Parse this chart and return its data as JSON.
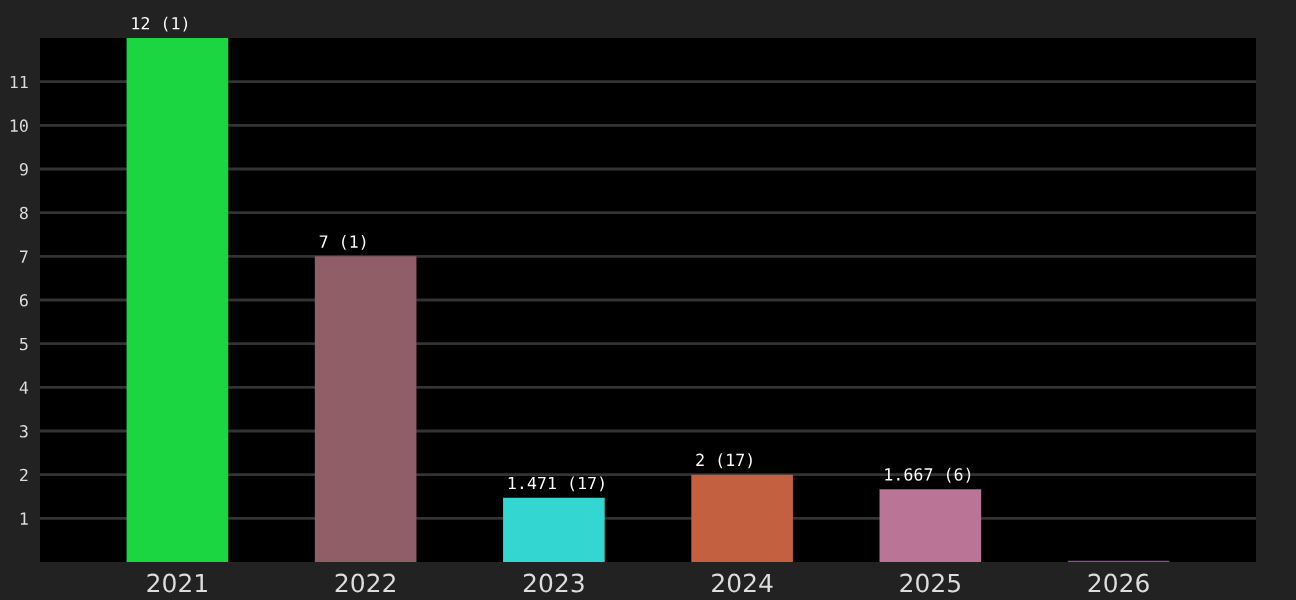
{
  "chart_data": {
    "type": "bar",
    "categories": [
      "2021",
      "2022",
      "2023",
      "2024",
      "2025",
      "2026"
    ],
    "values": [
      12,
      7,
      1.471,
      2,
      1.667,
      0.03
    ],
    "colors": [
      "#1cd641",
      "#8f5e66",
      "#33d6d0",
      "#c26040",
      "#ba7496",
      "#a040b0"
    ],
    "value_labels": [
      "12 (1)",
      "7 (1)",
      "1.471 (17)",
      "2 (17)",
      "1.667 (6)",
      null
    ],
    "ylim": [
      0,
      12
    ],
    "yticks": [
      1,
      2,
      3,
      4,
      5,
      6,
      7,
      8,
      9,
      10,
      11
    ],
    "grid": "y",
    "legend": false
  }
}
